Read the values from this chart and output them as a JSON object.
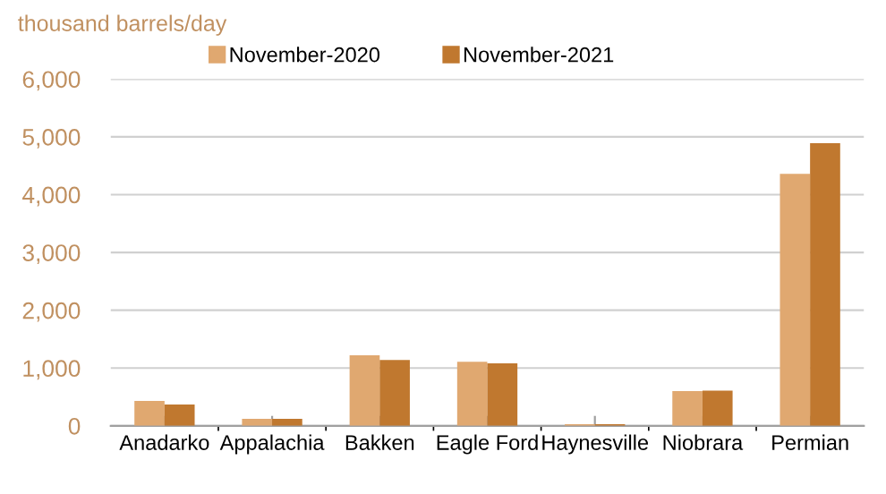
{
  "chart_data": {
    "type": "bar",
    "ylabel": "thousand barrels/day",
    "categories": [
      "Anadarko",
      "Appalachia",
      "Bakken",
      "Eagle Ford",
      "Haynesville",
      "Niobrara",
      "Permian"
    ],
    "series": [
      {
        "name": "November-2020",
        "color": "#e0a870",
        "values": [
          430,
          120,
          1220,
          1110,
          30,
          600,
          4360
        ]
      },
      {
        "name": "November-2021",
        "color": "#c0782f",
        "values": [
          370,
          120,
          1140,
          1080,
          30,
          610,
          4890
        ]
      }
    ],
    "ylim": [
      0,
      6000
    ],
    "yticks": [
      {
        "value": 0,
        "label": "0"
      },
      {
        "value": 1000,
        "label": "1,000"
      },
      {
        "value": 2000,
        "label": "2,000"
      },
      {
        "value": 3000,
        "label": "3,000"
      },
      {
        "value": 4000,
        "label": "4,000"
      },
      {
        "value": 5000,
        "label": "5,000"
      },
      {
        "value": 6000,
        "label": "6,000"
      }
    ],
    "grid": "y",
    "legend": "top"
  }
}
